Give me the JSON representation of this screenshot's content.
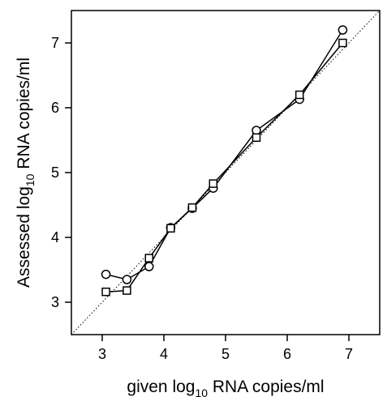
{
  "chart_data": {
    "type": "line",
    "title": "",
    "xlabel": {
      "prefix": "given log",
      "sub": "10",
      "suffix": " RNA copies/ml"
    },
    "ylabel": {
      "prefix": "Assessed log",
      "sub": "10",
      "suffix": " RNA copies/ml"
    },
    "xlim": [
      2.5,
      7.5
    ],
    "ylim": [
      2.5,
      7.5
    ],
    "xticks": [
      3,
      4,
      5,
      6,
      7
    ],
    "yticks": [
      3,
      4,
      5,
      6,
      7
    ],
    "grid": false,
    "identity_line": true,
    "series": [
      {
        "marker": "circle",
        "x": [
          3.06,
          3.4,
          3.76,
          4.11,
          4.46,
          4.8,
          5.5,
          6.2,
          6.9
        ],
        "y": [
          3.43,
          3.35,
          3.55,
          4.15,
          4.45,
          4.76,
          5.65,
          6.13,
          7.2
        ]
      },
      {
        "marker": "square",
        "x": [
          3.06,
          3.4,
          3.76,
          4.11,
          4.46,
          4.8,
          5.5,
          6.2,
          6.9
        ],
        "y": [
          3.16,
          3.18,
          3.68,
          4.14,
          4.46,
          4.83,
          5.54,
          6.2,
          7.0
        ]
      }
    ]
  }
}
